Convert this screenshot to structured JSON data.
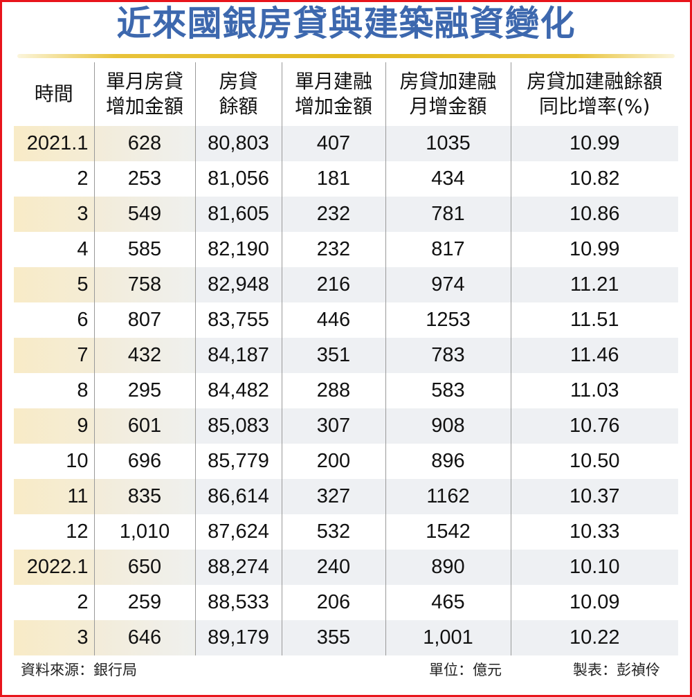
{
  "title": "近來國銀房貸與建築融資變化",
  "chart_data": {
    "type": "table",
    "title": "近來國銀房貸與建築融資變化",
    "columns": [
      "時間",
      "單月房貸\n增加金額",
      "房貸\n餘額",
      "單月建融\n增加金額",
      "房貸加建融\n月增金額",
      "房貸加建融餘額\n同比增率(%)"
    ],
    "rows": [
      [
        "2021.1",
        "628",
        "80,803",
        "407",
        "1035",
        "10.99"
      ],
      [
        "2",
        "253",
        "81,056",
        "181",
        "434",
        "10.82"
      ],
      [
        "3",
        "549",
        "81,605",
        "232",
        "781",
        "10.86"
      ],
      [
        "4",
        "585",
        "82,190",
        "232",
        "817",
        "10.99"
      ],
      [
        "5",
        "758",
        "82,948",
        "216",
        "974",
        "11.21"
      ],
      [
        "6",
        "807",
        "83,755",
        "446",
        "1253",
        "11.51"
      ],
      [
        "7",
        "432",
        "84,187",
        "351",
        "783",
        "11.46"
      ],
      [
        "8",
        "295",
        "84,482",
        "288",
        "583",
        "11.03"
      ],
      [
        "9",
        "601",
        "85,083",
        "307",
        "908",
        "10.76"
      ],
      [
        "10",
        "696",
        "85,779",
        "200",
        "896",
        "10.50"
      ],
      [
        "11",
        "835",
        "86,614",
        "327",
        "1162",
        "10.37"
      ],
      [
        "12",
        "1,010",
        "87,624",
        "532",
        "1542",
        "10.33"
      ],
      [
        "2022.1",
        "650",
        "88,274",
        "240",
        "890",
        "10.10"
      ],
      [
        "2",
        "259",
        "88,533",
        "206",
        "465",
        "10.09"
      ],
      [
        "3",
        "646",
        "89,179",
        "355",
        "1,001",
        "10.22"
      ]
    ]
  },
  "footer": {
    "source": "資料來源：銀行局",
    "unit": "單位：億元",
    "author": "製表：彭禎伶"
  },
  "colors": {
    "title": "#3d68ae",
    "border": "#e8141b",
    "accent_line": "#e2b81e"
  }
}
